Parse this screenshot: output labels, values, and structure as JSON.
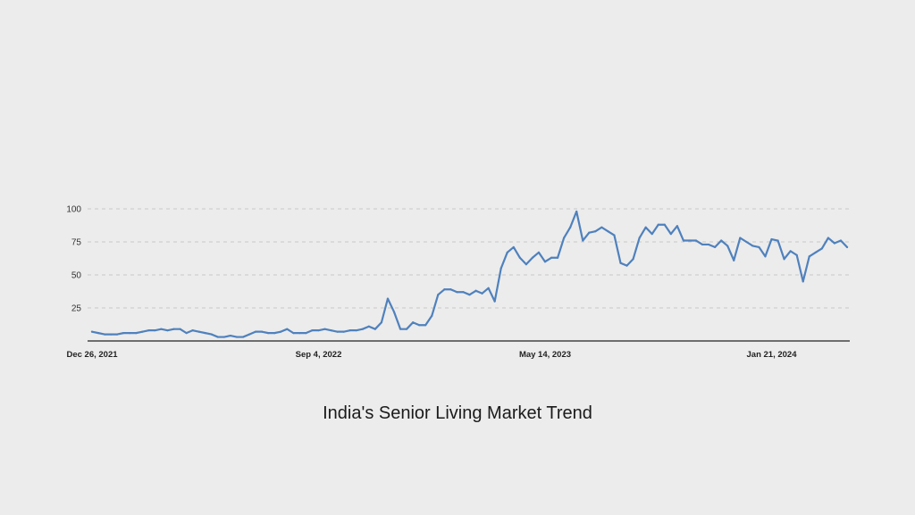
{
  "chart_data": {
    "type": "line",
    "title": "India's Senior Living Market Trend",
    "xlabel": "",
    "ylabel": "",
    "ylim": [
      0,
      100
    ],
    "yticks": [
      25,
      50,
      75,
      100
    ],
    "x_tick_labels": [
      "Dec 26, 2021",
      "Sep 4, 2022",
      "May 14, 2023",
      "Jan 21, 2024"
    ],
    "grid": "horizontal dashed",
    "line_color": "#4f81bd",
    "x_start": "2021-12-26",
    "x_interval": "1 week",
    "series": [
      {
        "values": [
          7,
          6,
          5,
          5,
          5,
          6,
          6,
          6,
          7,
          8,
          8,
          9,
          8,
          9,
          9,
          6,
          8,
          7,
          6,
          5,
          3,
          3,
          4,
          3,
          3,
          5,
          7,
          7,
          6,
          6,
          7,
          9,
          6,
          6,
          6,
          8,
          8,
          9,
          8,
          7,
          7,
          8,
          8,
          9,
          11,
          9,
          14,
          32,
          22,
          9,
          9,
          14,
          12,
          12,
          19,
          35,
          39,
          39,
          37,
          37,
          35,
          38,
          36,
          40,
          30,
          55,
          67,
          71,
          63,
          58,
          63,
          67,
          60,
          63,
          63,
          78,
          86,
          98,
          76,
          82,
          83,
          86,
          83,
          80,
          59,
          57,
          62,
          78,
          86,
          81,
          88,
          88,
          81,
          87,
          76,
          76,
          76,
          73,
          73,
          71,
          76,
          72,
          61,
          78,
          75,
          72,
          71,
          64,
          77,
          76,
          62,
          68,
          65,
          45,
          64,
          67,
          70,
          78,
          74,
          76,
          71
        ]
      }
    ]
  }
}
